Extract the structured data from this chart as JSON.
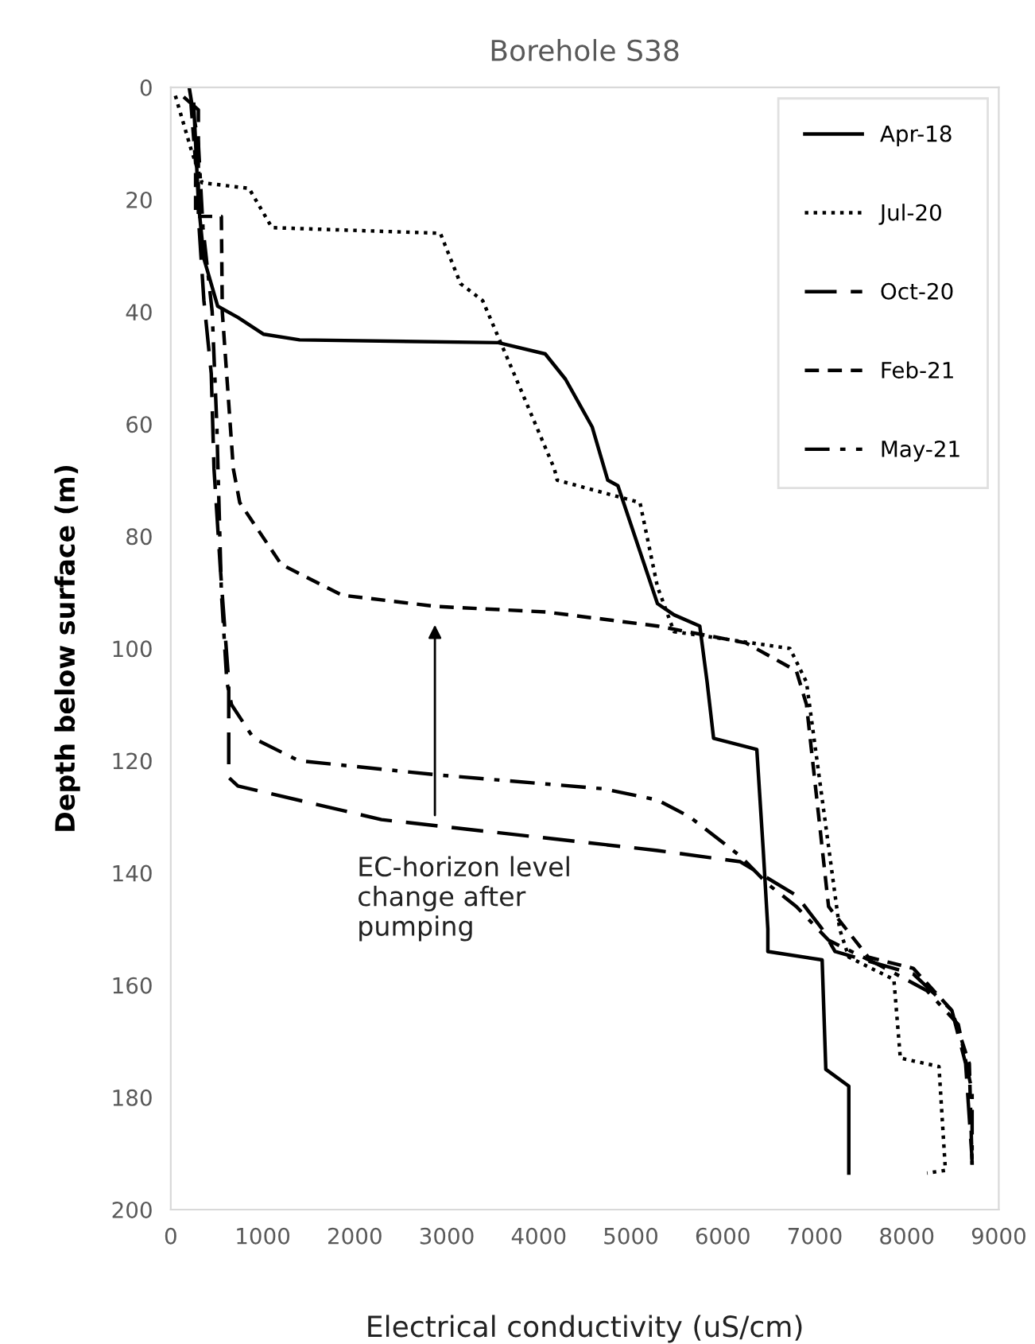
{
  "chart_data": {
    "type": "line",
    "title": "Borehole S38",
    "xlabel": "Electrical conductivity (uS/cm)",
    "ylabel": "Depth below surface (m)",
    "xlim": [
      0,
      9000
    ],
    "xticks": [
      0,
      1000,
      2000,
      3000,
      4000,
      5000,
      6000,
      7000,
      8000,
      9000
    ],
    "ylim": [
      200,
      0
    ],
    "yticks": [
      0,
      20,
      40,
      60,
      80,
      100,
      120,
      140,
      160,
      180,
      200
    ],
    "grid": false,
    "legend": "top right",
    "marker": "none",
    "annotations": [
      "EC-horizon level\nchange after\npumping"
    ],
    "series": [
      {
        "name": "Apr-18",
        "color": "#000000",
        "line_style": "solid",
        "x": [
          250,
          300,
          360,
          510,
          730,
          1010,
          1400,
          3560,
          4070,
          4290,
          4580,
          4750,
          4860,
          5290,
          5470,
          5750,
          5830,
          5900,
          6370,
          6440,
          6490,
          6490,
          7080,
          7120,
          7370,
          7370
        ],
        "values": [
          3,
          20.5,
          30.5,
          39,
          41,
          44,
          45,
          45.5,
          47.5,
          52,
          60.5,
          70,
          71,
          92,
          94,
          96,
          106,
          116,
          118,
          136,
          150,
          154,
          155.5,
          175,
          178,
          193.5
        ]
      },
      {
        "name": "Jul-20",
        "color": "#000000",
        "line_style": "dotted",
        "x": [
          50,
          220,
          340,
          850,
          1100,
          2930,
          3150,
          3390,
          3730,
          4170,
          4200,
          5100,
          5290,
          5470,
          6730,
          6910,
          7270,
          7370,
          7860,
          7930,
          8350,
          8420,
          8220
        ],
        "values": [
          1.5,
          11,
          17,
          18,
          25,
          26,
          35,
          38,
          51,
          68,
          70,
          74,
          89,
          97,
          100,
          106,
          150,
          155,
          159,
          173,
          174.5,
          193,
          193.5
        ]
      },
      {
        "name": "Oct-20",
        "color": "#000000",
        "line_style": "longdash",
        "x": [
          140,
          300,
          300,
          360,
          440,
          470,
          540,
          630,
          630,
          730,
          2290,
          5290,
          6190,
          6800,
          7080,
          7220,
          8070,
          8490,
          8640,
          8710
        ],
        "values": [
          1.7,
          4,
          23,
          38,
          51,
          68,
          86,
          106,
          123,
          124.5,
          130.5,
          136,
          138,
          144,
          150,
          154,
          158,
          164.5,
          174,
          191
        ]
      },
      {
        "name": "Feb-21",
        "color": "#000000",
        "line_style": "dashed",
        "x": [
          220,
          270,
          270,
          550,
          560,
          680,
          750,
          1200,
          1860,
          2880,
          4080,
          5290,
          6250,
          6800,
          6910,
          7150,
          7580,
          8070,
          8490,
          8680,
          8710
        ],
        "values": [
          3,
          13.5,
          23,
          23,
          40,
          68,
          74,
          85,
          90.5,
          92.5,
          93.5,
          96,
          99,
          104,
          110,
          146,
          155,
          157,
          164.5,
          174,
          192
        ]
      },
      {
        "name": "May-21",
        "color": "#000000",
        "line_style": "dashdot",
        "x": [
          200,
          300,
          350,
          450,
          500,
          550,
          610,
          660,
          900,
          1390,
          2880,
          4700,
          5290,
          5640,
          6190,
          6490,
          6800,
          7150,
          7710,
          8220,
          8560,
          8710,
          8710
        ],
        "values": [
          0,
          10,
          25,
          40,
          60,
          90,
          106,
          110,
          116,
          120,
          122.5,
          125,
          127,
          130,
          137,
          142,
          146,
          152,
          156.5,
          161,
          167,
          179,
          192
        ]
      }
    ]
  }
}
